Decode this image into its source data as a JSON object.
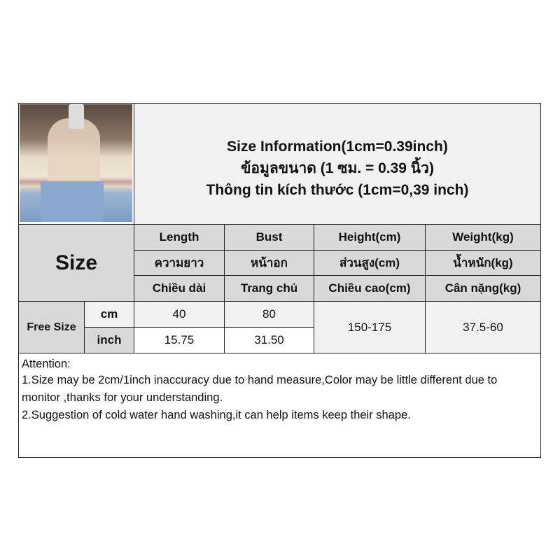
{
  "title": {
    "en": "Size Information(1cm=0.39inch)",
    "th": "ข้อมูลขนาด (1 ซม. = 0.39 นิ้ว)",
    "vi": "Thông tin kích thước (1cm=0,39 inch)"
  },
  "size_label": "Size",
  "columns": [
    {
      "en": "Length",
      "th": "ความยาว",
      "vi": "Chiều dài"
    },
    {
      "en": "Bust",
      "th": "หน้าอก",
      "vi": "Trang chủ"
    },
    {
      "en": "Height(cm)",
      "th": "ส่วนสูง(cm)",
      "vi": "Chiều cao(cm)"
    },
    {
      "en": "Weight(kg)",
      "th": "น้ำหนัก(kg)",
      "vi": "Cân nặng(kg)"
    }
  ],
  "row": {
    "size": "Free Size",
    "cm": {
      "unit": "cm",
      "length": "40",
      "bust": "80"
    },
    "inch": {
      "unit": "inch",
      "length": "15.75",
      "bust": "31.50"
    },
    "height": "150-175",
    "weight": "37.5-60"
  },
  "attention": {
    "heading": "Attention:",
    "lines": [
      "1.Size may be 2cm/1inch inaccuracy due to hand measure,Color may be little different due to monitor ,thanks for your understanding.",
      "2.Suggestion of cold water hand washing,it can help items keep their shape."
    ]
  }
}
